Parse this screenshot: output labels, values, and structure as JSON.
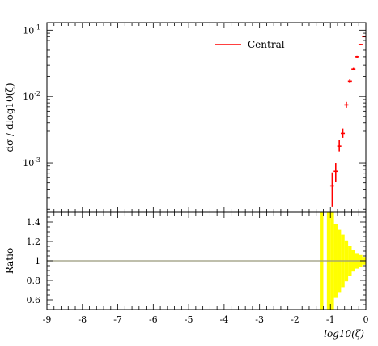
{
  "chart_data": [
    {
      "type": "scatter",
      "panel": "main",
      "ylabel": "dσ / dlog10(ζ)",
      "yscale": "log",
      "xlim": [
        -9,
        0
      ],
      "ylim": [
        0.00018,
        0.13
      ],
      "yticks": [
        {
          "value": 0.1,
          "label": "10^-1"
        },
        {
          "value": 0.01,
          "label": "10^-2"
        },
        {
          "value": 0.001,
          "label": "10^-3"
        }
      ],
      "legend": {
        "placement": "top-right"
      },
      "series": [
        {
          "name": "Central",
          "color": "#ff0000",
          "points": [
            {
              "x": -0.95,
              "y": 0.00045,
              "ylo": 0.00022,
              "yhi": 0.00072
            },
            {
              "x": -0.85,
              "y": 0.00075,
              "ylo": 0.00052,
              "yhi": 0.001
            },
            {
              "x": -0.75,
              "y": 0.0018,
              "ylo": 0.0015,
              "yhi": 0.0022
            },
            {
              "x": -0.65,
              "y": 0.0028,
              "ylo": 0.0024,
              "yhi": 0.0033
            },
            {
              "x": -0.55,
              "y": 0.0075,
              "ylo": 0.0068,
              "yhi": 0.0083
            },
            {
              "x": -0.45,
              "y": 0.017,
              "ylo": 0.0158,
              "yhi": 0.0182
            },
            {
              "x": -0.35,
              "y": 0.026,
              "ylo": 0.0248,
              "yhi": 0.0272
            },
            {
              "x": -0.25,
              "y": 0.04,
              "ylo": 0.0388,
              "yhi": 0.0412
            },
            {
              "x": -0.15,
              "y": 0.061,
              "ylo": 0.0597,
              "yhi": 0.0623
            },
            {
              "x": -0.05,
              "y": 0.08,
              "ylo": 0.0788,
              "yhi": 0.0812
            }
          ]
        }
      ]
    },
    {
      "type": "bar",
      "panel": "ratio",
      "ylabel": "Ratio",
      "xlabel": "log10(ζ)",
      "xlim": [
        -9,
        0
      ],
      "ylim": [
        0.5,
        1.5
      ],
      "xticks": [
        -9,
        -8,
        -7,
        -6,
        -5,
        -4,
        -3,
        -2,
        -1,
        0
      ],
      "yticks": [
        1.4,
        1.2,
        1,
        0.8,
        0.6
      ],
      "reference_line": 1,
      "reference_color": "#99997a",
      "band_color": "#ffff00",
      "bands": [
        {
          "x0": -1.3,
          "x1": -1.2,
          "lo": 0.5,
          "hi": 1.5
        },
        {
          "x0": -1.1,
          "x1": -1.0,
          "lo": 0.5,
          "hi": 1.5
        },
        {
          "x0": -1.0,
          "x1": -0.9,
          "lo": 0.5,
          "hi": 1.5
        },
        {
          "x0": -0.9,
          "x1": -0.8,
          "lo": 0.62,
          "hi": 1.38
        },
        {
          "x0": -0.8,
          "x1": -0.7,
          "lo": 0.68,
          "hi": 1.32
        },
        {
          "x0": -0.7,
          "x1": -0.6,
          "lo": 0.73,
          "hi": 1.27
        },
        {
          "x0": -0.6,
          "x1": -0.5,
          "lo": 0.79,
          "hi": 1.21
        },
        {
          "x0": -0.5,
          "x1": -0.4,
          "lo": 0.85,
          "hi": 1.15
        },
        {
          "x0": -0.4,
          "x1": -0.3,
          "lo": 0.89,
          "hi": 1.11
        },
        {
          "x0": -0.3,
          "x1": -0.2,
          "lo": 0.92,
          "hi": 1.08
        },
        {
          "x0": -0.2,
          "x1": -0.1,
          "lo": 0.94,
          "hi": 1.06
        },
        {
          "x0": -0.1,
          "x1": 0.0,
          "lo": 0.96,
          "hi": 1.04
        }
      ]
    }
  ]
}
